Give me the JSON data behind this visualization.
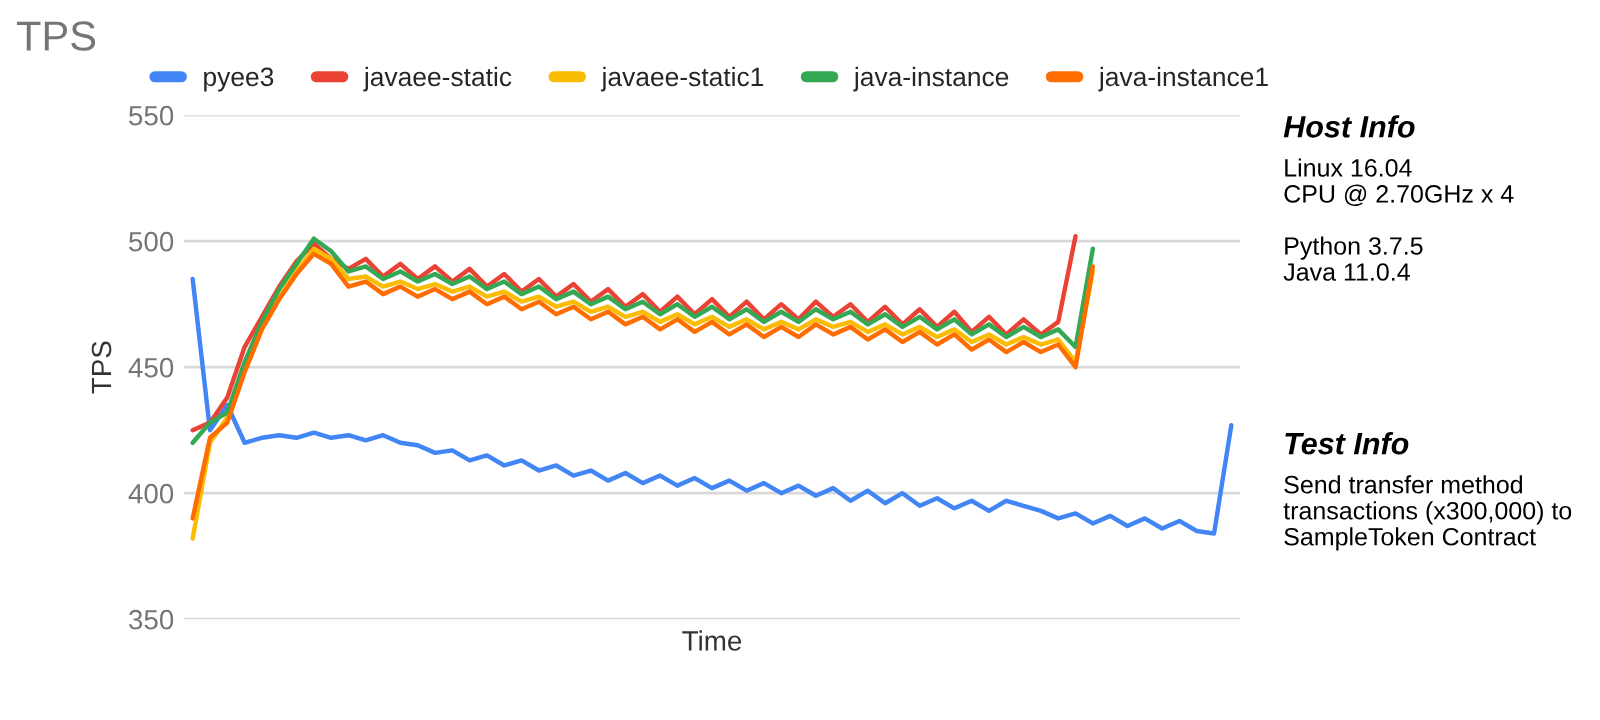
{
  "chart_data": {
    "type": "line",
    "title": "TPS",
    "xlabel": "Time",
    "ylabel": "TPS",
    "categories": [
      null,
      null,
      null,
      null,
      null,
      null,
      null,
      null,
      null,
      null,
      null,
      null,
      null,
      null,
      null,
      null,
      null,
      null,
      null,
      null,
      null,
      null,
      null,
      null,
      null,
      null,
      null,
      null,
      null,
      null,
      null,
      null,
      null,
      null,
      null,
      null,
      null,
      null,
      null,
      null,
      null,
      null,
      null,
      null,
      null,
      null,
      null,
      null,
      null,
      null,
      null,
      null,
      null,
      null,
      null,
      null,
      null,
      null,
      null,
      null,
      null
    ],
    "series": [
      {
        "name": "pyee3",
        "color": "#4285f4",
        "values": [
          485,
          425,
          435,
          420,
          422,
          423,
          422,
          424,
          422,
          423,
          421,
          423,
          420,
          419,
          416,
          417,
          413,
          415,
          411,
          413,
          409,
          411,
          407,
          409,
          405,
          408,
          404,
          407,
          403,
          406,
          402,
          405,
          401,
          404,
          400,
          403,
          399,
          402,
          397,
          401,
          396,
          400,
          395,
          398,
          394,
          397,
          393,
          397,
          395,
          393,
          390,
          392,
          388,
          391,
          387,
          390,
          386,
          389,
          385,
          384,
          427
        ]
      },
      {
        "name": "javaee-static",
        "color": "#ea4335",
        "values": [
          425,
          428,
          438,
          458,
          470,
          482,
          492,
          499,
          493,
          489,
          493,
          486,
          491,
          485,
          490,
          484,
          489,
          482,
          487,
          480,
          485,
          478,
          483,
          476,
          481,
          474,
          479,
          472,
          478,
          471,
          477,
          470,
          476,
          469,
          475,
          469,
          476,
          470,
          475,
          468,
          474,
          467,
          473,
          466,
          472,
          464,
          470,
          463,
          469,
          463,
          468,
          502,
          null,
          null,
          null,
          null,
          null,
          null,
          null,
          null,
          null
        ]
      },
      {
        "name": "javaee-static1",
        "color": "#fbbc04",
        "values": [
          382,
          420,
          430,
          450,
          466,
          478,
          488,
          497,
          493,
          485,
          486,
          482,
          484,
          481,
          483,
          480,
          482,
          478,
          480,
          476,
          478,
          474,
          476,
          472,
          474,
          470,
          472,
          468,
          471,
          467,
          470,
          466,
          469,
          465,
          468,
          465,
          469,
          466,
          468,
          464,
          467,
          463,
          466,
          462,
          465,
          460,
          463,
          459,
          462,
          459,
          461,
          452,
          488,
          null,
          null,
          null,
          null,
          null,
          null,
          null,
          null
        ]
      },
      {
        "name": "java-instance",
        "color": "#34a853",
        "values": [
          420,
          428,
          432,
          452,
          468,
          481,
          491,
          501,
          496,
          488,
          490,
          485,
          488,
          484,
          487,
          483,
          486,
          481,
          484,
          479,
          482,
          477,
          480,
          475,
          478,
          473,
          476,
          471,
          475,
          470,
          474,
          469,
          473,
          468,
          472,
          468,
          473,
          469,
          472,
          467,
          471,
          466,
          470,
          465,
          469,
          463,
          467,
          462,
          466,
          462,
          465,
          458,
          497,
          null,
          null,
          null,
          null,
          null,
          null,
          null,
          null
        ]
      },
      {
        "name": "java-instance1",
        "color": "#ff6d01",
        "values": [
          390,
          422,
          428,
          448,
          465,
          477,
          487,
          495,
          491,
          482,
          484,
          479,
          482,
          478,
          481,
          477,
          480,
          475,
          478,
          473,
          476,
          471,
          474,
          469,
          472,
          467,
          470,
          465,
          469,
          464,
          468,
          463,
          467,
          462,
          466,
          462,
          467,
          463,
          466,
          461,
          465,
          460,
          464,
          459,
          463,
          457,
          461,
          456,
          460,
          456,
          459,
          450,
          490,
          null,
          null,
          null,
          null,
          null,
          null,
          null,
          null
        ]
      }
    ],
    "ylim": [
      350,
      550
    ],
    "yticks": [
      350,
      400,
      450,
      500,
      550
    ],
    "grid": "y",
    "legend": "top left",
    "tick_labels": "y",
    "annotations": [
      "Host Info",
      "Linux 16.04\nCPU @ 2.70GHz x 4\n\nPython 3.7.5\nJava 11.0.4",
      "Test Info",
      "Send transfer method\ntransactions (x300,000) to\nSampleToken Contract"
    ]
  }
}
